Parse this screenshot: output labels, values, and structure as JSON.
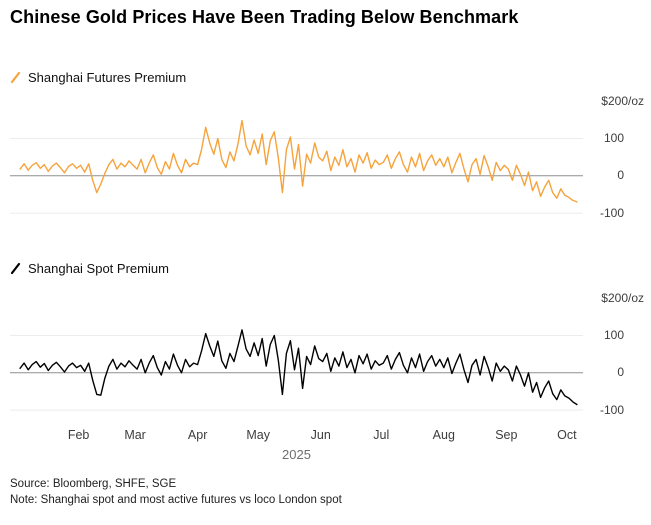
{
  "title": "Chinese Gold Prices Have Been Trading Below Benchmark",
  "source": "Source: Bloomberg, SHFE, SGE",
  "note": "Note: Shanghai spot and most active futures vs loco London spot",
  "colors": {
    "futures_line": "#F6A33C",
    "spot_line": "#000000",
    "zero_line": "#8f8f8f",
    "gridline": "#ececec"
  },
  "panels": [
    {
      "legend": "Shanghai Futures Premium",
      "y_labels": [
        "$200/oz",
        "100",
        "0",
        "-100"
      ]
    },
    {
      "legend": "Shanghai Spot Premium",
      "y_labels": [
        "$200/oz",
        "100",
        "0",
        "-100"
      ]
    }
  ],
  "x_axis": {
    "year": "2025",
    "ticks": [
      {
        "label": "Feb",
        "day": 32
      },
      {
        "label": "Mar",
        "day": 60
      },
      {
        "label": "Apr",
        "day": 91
      },
      {
        "label": "May",
        "day": 121
      },
      {
        "label": "Jun",
        "day": 152
      },
      {
        "label": "Jul",
        "day": 182
      },
      {
        "label": "Aug",
        "day": 213
      },
      {
        "label": "Sep",
        "day": 244
      },
      {
        "label": "Oct",
        "day": 274
      }
    ]
  },
  "chart_data": [
    {
      "type": "line",
      "title": "Shanghai Futures Premium",
      "ylabel": "Premium ($/oz)",
      "units": "$/oz",
      "color": "#F6A33C",
      "xlim": [
        -2,
        282
      ],
      "ylim": [
        -140,
        230
      ],
      "y_tick_values": [
        200,
        100,
        0,
        -100
      ],
      "gridlines": [
        100,
        0,
        -100
      ],
      "x_unit": "day_of_year_2025",
      "x_start": 3,
      "x_step": 2,
      "values": [
        18,
        32,
        15,
        28,
        35,
        20,
        30,
        12,
        26,
        34,
        22,
        8,
        25,
        32,
        20,
        28,
        10,
        32,
        -12,
        -45,
        -22,
        6,
        30,
        44,
        18,
        34,
        24,
        40,
        28,
        18,
        44,
        8,
        34,
        56,
        22,
        4,
        38,
        18,
        60,
        28,
        8,
        44,
        24,
        34,
        30,
        72,
        130,
        88,
        58,
        100,
        44,
        22,
        64,
        40,
        86,
        148,
        80,
        56,
        96,
        60,
        112,
        30,
        94,
        118,
        48,
        -45,
        70,
        104,
        18,
        84,
        -28,
        58,
        34,
        88,
        50,
        40,
        66,
        14,
        50,
        28,
        70,
        24,
        46,
        10,
        56,
        34,
        62,
        20,
        42,
        30,
        36,
        56,
        20,
        46,
        64,
        30,
        10,
        50,
        24,
        60,
        14,
        40,
        56,
        28,
        46,
        24,
        50,
        8,
        36,
        60,
        18,
        -16,
        30,
        46,
        4,
        54,
        24,
        -12,
        36,
        14,
        28,
        18,
        -12,
        28,
        4,
        -26,
        10,
        -40,
        -16,
        -55,
        -30,
        -12,
        -45,
        -60,
        -35,
        -52,
        -58,
        -66,
        -70
      ]
    },
    {
      "type": "line",
      "title": "Shanghai Spot Premium",
      "ylabel": "Premium ($/oz)",
      "units": "$/oz",
      "color": "#000000",
      "xlim": [
        -2,
        282
      ],
      "ylim": [
        -140,
        230
      ],
      "y_tick_values": [
        200,
        100,
        0,
        -100
      ],
      "gridlines": [
        100,
        0,
        -100
      ],
      "x_unit": "day_of_year_2025",
      "x_start": 3,
      "x_step": 2,
      "values": [
        12,
        26,
        8,
        22,
        30,
        15,
        25,
        6,
        20,
        28,
        16,
        2,
        18,
        26,
        14,
        20,
        4,
        26,
        -20,
        -58,
        -60,
        -15,
        18,
        36,
        10,
        26,
        16,
        32,
        20,
        10,
        36,
        0,
        26,
        46,
        14,
        -6,
        30,
        10,
        50,
        20,
        0,
        36,
        16,
        26,
        22,
        60,
        105,
        72,
        44,
        85,
        32,
        12,
        52,
        30,
        72,
        115,
        64,
        44,
        80,
        46,
        92,
        18,
        76,
        100,
        34,
        -58,
        52,
        86,
        8,
        66,
        -42,
        44,
        22,
        72,
        38,
        30,
        52,
        4,
        40,
        18,
        56,
        14,
        36,
        0,
        46,
        24,
        50,
        10,
        32,
        20,
        26,
        46,
        10,
        36,
        54,
        20,
        0,
        40,
        14,
        50,
        4,
        30,
        46,
        18,
        36,
        14,
        40,
        -2,
        26,
        50,
        8,
        -26,
        20,
        36,
        -6,
        44,
        14,
        -22,
        26,
        4,
        18,
        8,
        -22,
        18,
        -6,
        -36,
        0,
        -52,
        -26,
        -66,
        -40,
        -22,
        -56,
        -72,
        -46,
        -62,
        -68,
        -78,
        -85
      ]
    }
  ]
}
